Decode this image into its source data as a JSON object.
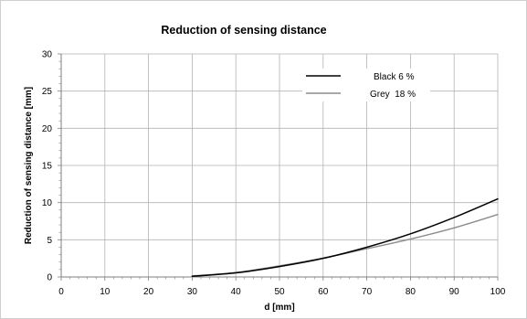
{
  "chart_data": {
    "type": "line",
    "title": "Reduction of sensing distance",
    "xlabel": "d [mm]",
    "ylabel": "Reduction of sensing distance [mm]",
    "xlim": [
      0,
      100
    ],
    "ylim": [
      0,
      30
    ],
    "xticks": [
      "0",
      "10",
      "20",
      "30",
      "40",
      "50",
      "60",
      "70",
      "80",
      "90",
      "100"
    ],
    "yticks": [
      "0",
      "5",
      "10",
      "15",
      "20",
      "25",
      "30"
    ],
    "grid": true,
    "legend_position": "top-right",
    "series": [
      {
        "name": "Black 6 %",
        "color": "#000000",
        "x": [
          30,
          40,
          50,
          60,
          70,
          80,
          90,
          100
        ],
        "y": [
          0.1,
          0.55,
          1.4,
          2.5,
          4.0,
          5.8,
          8.0,
          10.5
        ]
      },
      {
        "name": "Grey  18 %",
        "color": "#8c8c8c",
        "x": [
          30,
          40,
          50,
          60,
          70,
          80,
          90,
          100
        ],
        "y": [
          0.15,
          0.6,
          1.5,
          2.55,
          3.8,
          5.1,
          6.6,
          8.4
        ]
      }
    ]
  }
}
